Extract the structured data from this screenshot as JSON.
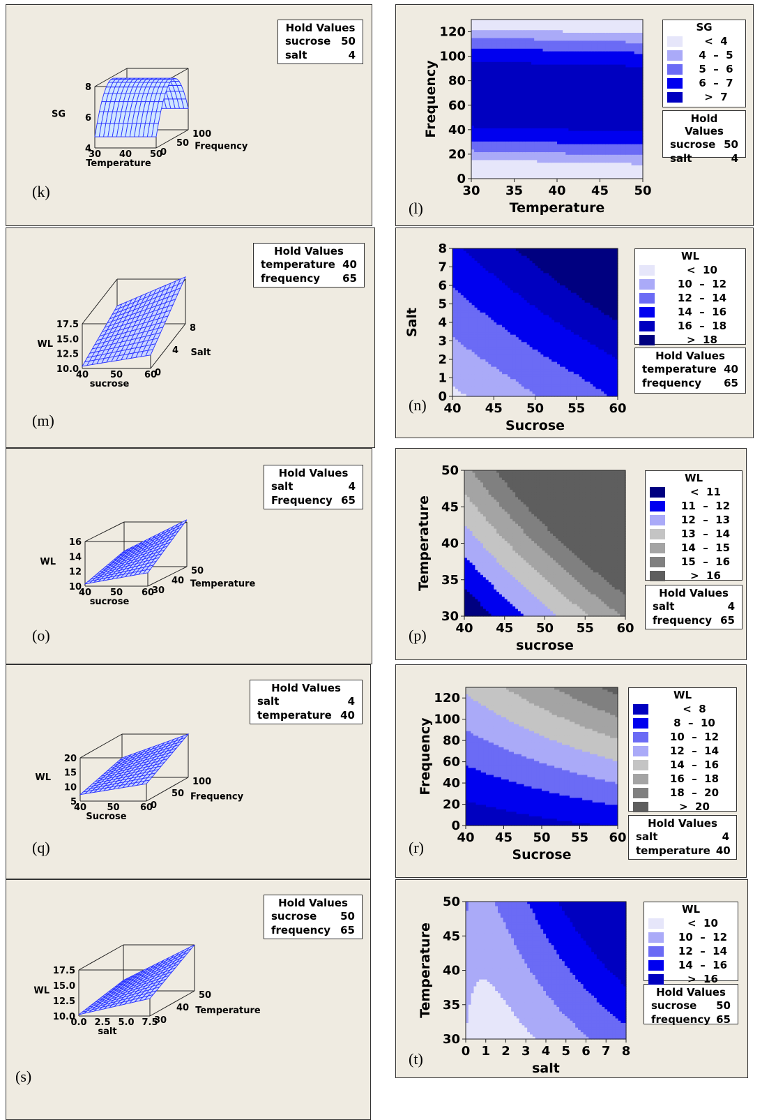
{
  "panels": {
    "k": {
      "label": "(k)",
      "hold_title": "Hold Values",
      "hold": [
        [
          "sucrose",
          "50"
        ],
        [
          "salt",
          "4"
        ]
      ]
    },
    "l": {
      "label": "(l)",
      "hold_title": "Hold Values",
      "hold": [
        [
          "sucrose",
          "50"
        ],
        [
          "salt",
          "4"
        ]
      ],
      "legend_title": "SG",
      "legend": [
        "<  4",
        "4  –  5",
        "5  –  6",
        "6  –  7",
        ">  7"
      ]
    },
    "m": {
      "label": "(m)",
      "hold_title": "Hold Values",
      "hold": [
        [
          "temperature",
          "40"
        ],
        [
          "frequency",
          "65"
        ]
      ]
    },
    "n": {
      "label": "(n)",
      "hold_title": "Hold Values",
      "hold": [
        [
          "temperature",
          "40"
        ],
        [
          "frequency",
          "65"
        ]
      ],
      "legend_title": "WL",
      "legend": [
        "<  10",
        "10  –  12",
        "12  –  14",
        "14  –  16",
        "16  –  18",
        ">  18"
      ]
    },
    "o": {
      "label": "(o)",
      "hold_title": "Hold Values",
      "hold": [
        [
          "salt",
          "4"
        ],
        [
          "Frequency",
          "65"
        ]
      ]
    },
    "p": {
      "label": "(p)",
      "hold_title": "Hold Values",
      "hold": [
        [
          "salt",
          "4"
        ],
        [
          "frequency",
          "65"
        ]
      ],
      "legend_title": "WL",
      "legend": [
        "<  11",
        "11  –  12",
        "12  –  13",
        "13  –  14",
        "14  –  15",
        "15  –  16",
        ">  16"
      ]
    },
    "q": {
      "label": "(q)",
      "hold_title": "Hold Values",
      "hold": [
        [
          "salt",
          "4"
        ],
        [
          "temperature",
          "40"
        ]
      ]
    },
    "r": {
      "label": "(r)",
      "hold_title": "Hold Values",
      "hold": [
        [
          "salt",
          "4"
        ],
        [
          "temperature",
          "40"
        ]
      ],
      "legend_title": "WL",
      "legend": [
        "<  8",
        "8  –  10",
        "10  –  12",
        "12  –  14",
        "14  –  16",
        "16  –  18",
        "18  –  20",
        ">  20"
      ]
    },
    "s": {
      "label": "(s)",
      "hold_title": "Hold Values",
      "hold": [
        [
          "sucrose",
          "50"
        ],
        [
          "frequency",
          "65"
        ]
      ]
    },
    "t": {
      "label": "(t)",
      "hold_title": "Hold Values",
      "hold": [
        [
          "sucrose",
          "50"
        ],
        [
          "frequency",
          "65"
        ]
      ],
      "legend_title": "WL",
      "legend": [
        "<  10",
        "10  –  12",
        "12  –  14",
        "14  –  16",
        ">  16"
      ]
    }
  },
  "chart_data": [
    {
      "id": "k",
      "type": "surface",
      "zlabel": "SG",
      "xlabel": "Temperature",
      "ylabel": "Frequency",
      "x_ticks": [
        "30",
        "40",
        "50"
      ],
      "y_ticks": [
        "0",
        "50",
        "100"
      ],
      "z_ticks": [
        "4",
        "6",
        "8"
      ]
    },
    {
      "id": "l",
      "type": "contour",
      "xlabel": "Temperature",
      "ylabel": "Frequency",
      "xlim": [
        30,
        50
      ],
      "ylim": [
        0,
        130
      ],
      "x_ticks": [
        30,
        35,
        40,
        45,
        50
      ],
      "y_ticks": [
        0,
        20,
        40,
        60,
        80,
        100,
        120
      ],
      "colors": [
        "#e6e6fa",
        "#aaaaf8",
        "#6b6bf5",
        "#0000ef",
        "#0000c0"
      ]
    },
    {
      "id": "m",
      "type": "surface",
      "zlabel": "WL",
      "xlabel": "sucrose",
      "ylabel": "Salt",
      "x_ticks": [
        "40",
        "50",
        "60"
      ],
      "y_ticks": [
        "0",
        "4",
        "8"
      ],
      "z_ticks": [
        "10.0",
        "12.5",
        "15.0",
        "17.5"
      ]
    },
    {
      "id": "n",
      "type": "contour",
      "xlabel": "Sucrose",
      "ylabel": "Salt",
      "xlim": [
        40,
        60
      ],
      "ylim": [
        0,
        8
      ],
      "x_ticks": [
        40,
        45,
        50,
        55,
        60
      ],
      "y_ticks": [
        0,
        1,
        2,
        3,
        4,
        5,
        6,
        7,
        8
      ],
      "colors": [
        "#e6e6fa",
        "#aaaaf8",
        "#6b6bf5",
        "#0000ef",
        "#0000c0",
        "#000080"
      ]
    },
    {
      "id": "o",
      "type": "surface",
      "zlabel": "WL",
      "xlabel": "sucrose",
      "ylabel": "Temperature",
      "x_ticks": [
        "40",
        "50",
        "60"
      ],
      "y_ticks": [
        "30",
        "40",
        "50"
      ],
      "z_ticks": [
        "10",
        "12",
        "14",
        "16"
      ]
    },
    {
      "id": "p",
      "type": "contour",
      "xlabel": "sucrose",
      "ylabel": "Temperature",
      "xlim": [
        40,
        60
      ],
      "ylim": [
        30,
        50
      ],
      "x_ticks": [
        40,
        45,
        50,
        55,
        60
      ],
      "y_ticks": [
        30,
        35,
        40,
        45,
        50
      ],
      "colors": [
        "#000080",
        "#0000ef",
        "#aaaaf8",
        "#c4c4c4",
        "#a4a4a4",
        "#808080",
        "#5e5e5e"
      ]
    },
    {
      "id": "q",
      "type": "surface",
      "zlabel": "WL",
      "xlabel": "Sucrose",
      "ylabel": "Frequency",
      "x_ticks": [
        "40",
        "50",
        "60"
      ],
      "y_ticks": [
        "0",
        "50",
        "100"
      ],
      "z_ticks": [
        "5",
        "10",
        "15",
        "20"
      ]
    },
    {
      "id": "r",
      "type": "contour",
      "xlabel": "Sucrose",
      "ylabel": "Frequency",
      "xlim": [
        40,
        60
      ],
      "ylim": [
        0,
        130
      ],
      "x_ticks": [
        40,
        45,
        50,
        55,
        60
      ],
      "y_ticks": [
        0,
        20,
        40,
        60,
        80,
        100,
        120
      ],
      "colors": [
        "#0000c0",
        "#0000ef",
        "#6b6bf5",
        "#aaaaf8",
        "#c4c4c4",
        "#a4a4a4",
        "#808080",
        "#5e5e5e"
      ]
    },
    {
      "id": "s",
      "type": "surface",
      "zlabel": "WL",
      "xlabel": "salt",
      "ylabel": "Temperature",
      "x_ticks": [
        "0.0",
        "2.5",
        "5.0",
        "7.5"
      ],
      "y_ticks": [
        "30",
        "40",
        "50"
      ],
      "z_ticks": [
        "10.0",
        "12.5",
        "15.0",
        "17.5"
      ]
    },
    {
      "id": "t",
      "type": "contour",
      "xlabel": "salt",
      "ylabel": "Temperature",
      "xlim": [
        0,
        8
      ],
      "ylim": [
        30,
        50
      ],
      "x_ticks": [
        0,
        1,
        2,
        3,
        4,
        5,
        6,
        7,
        8
      ],
      "y_ticks": [
        30,
        35,
        40,
        45,
        50
      ],
      "colors": [
        "#e6e6fa",
        "#aaaaf8",
        "#6b6bf5",
        "#0000ef",
        "#0000c0"
      ]
    }
  ]
}
